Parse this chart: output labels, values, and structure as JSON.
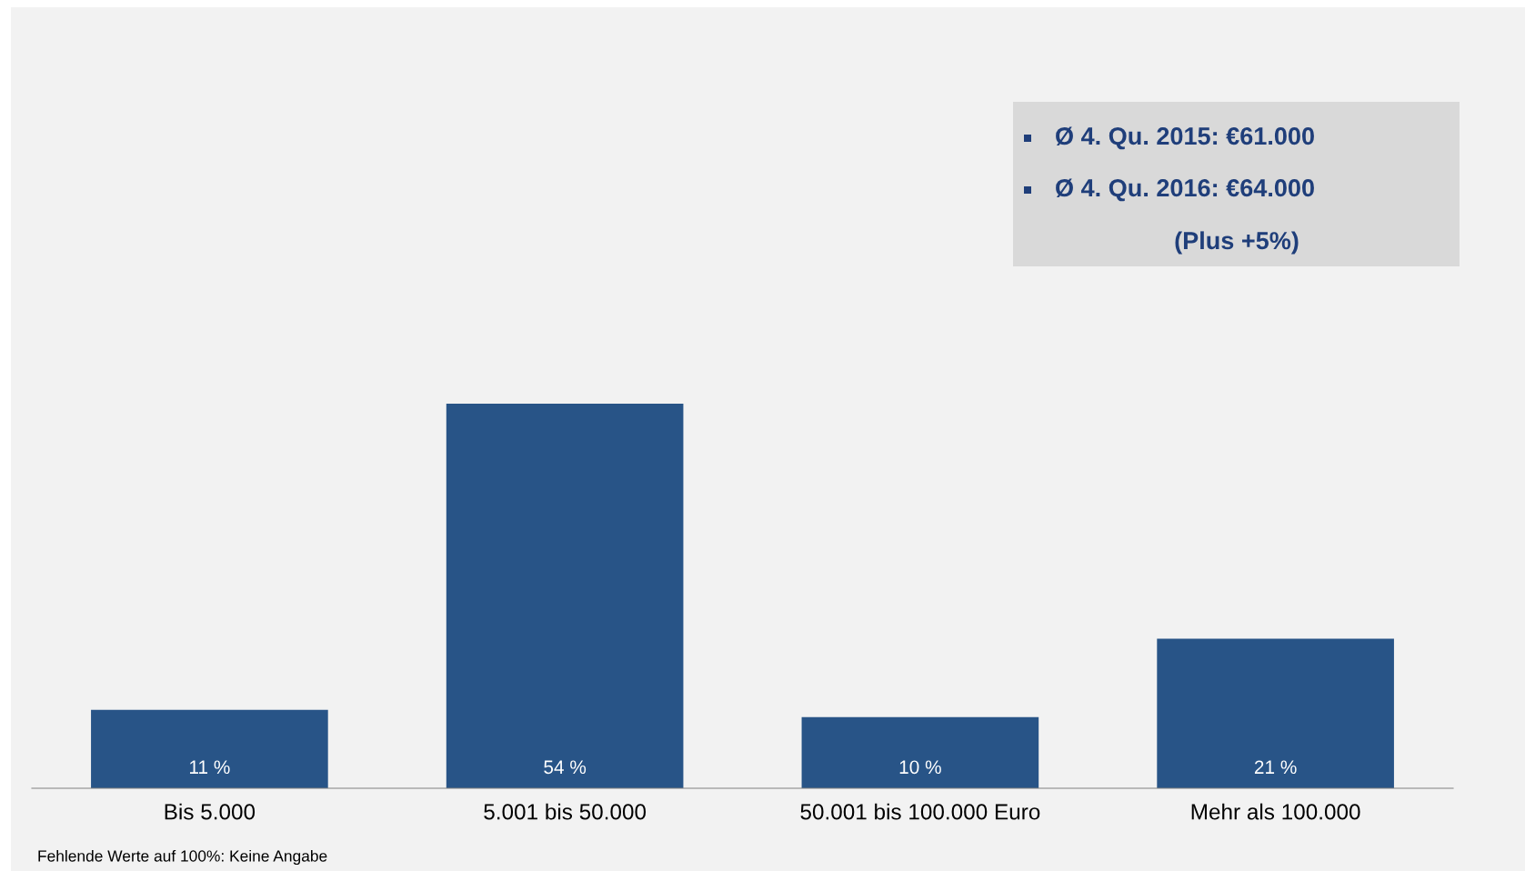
{
  "chart_data": {
    "type": "bar",
    "categories": [
      "Bis 5.000",
      "5.001 bis 50.000",
      "50.001 bis 100.000 Euro",
      "Mehr als 100.000"
    ],
    "values": [
      11,
      54,
      10,
      21
    ],
    "value_labels": [
      "11 %",
      "54 %",
      "10 %",
      "21 %"
    ],
    "color": "#285487",
    "annotations": [
      "Ø 4. Qu. 2015: €61.000",
      "Ø 4. Qu. 2016: €64.000",
      "(Plus +5%)",
      "Fehlende Werte auf 100%: Keine Angabe"
    ]
  }
}
